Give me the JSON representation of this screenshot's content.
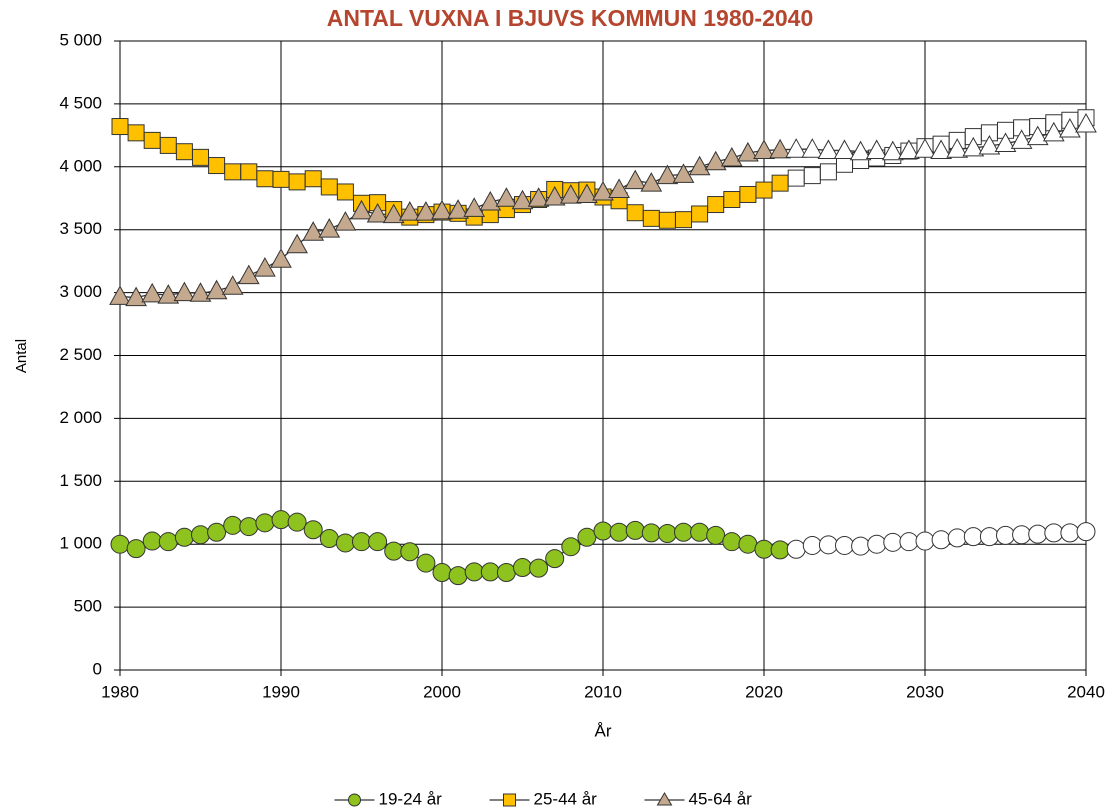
{
  "chart_data": {
    "type": "line",
    "title": "ANTAL VUXNA I BJUVS KOMMUN 1980-2040",
    "xlabel": "År",
    "ylabel": "Antal",
    "x": [
      1980,
      1981,
      1982,
      1983,
      1984,
      1985,
      1986,
      1987,
      1988,
      1989,
      1990,
      1991,
      1992,
      1993,
      1994,
      1995,
      1996,
      1997,
      1998,
      1999,
      2000,
      2001,
      2002,
      2003,
      2004,
      2005,
      2006,
      2007,
      2008,
      2009,
      2010,
      2011,
      2012,
      2013,
      2014,
      2015,
      2016,
      2017,
      2018,
      2019,
      2020,
      2021,
      2022,
      2023,
      2024,
      2025,
      2026,
      2027,
      2028,
      2029,
      2030,
      2031,
      2032,
      2033,
      2034,
      2035,
      2036,
      2037,
      2038,
      2039,
      2040
    ],
    "forecast_start": 2022,
    "series": [
      {
        "name": "19-24 år",
        "color": "#8dc21f",
        "marker": "circle",
        "values": [
          1000,
          965,
          1025,
          1020,
          1055,
          1075,
          1095,
          1150,
          1140,
          1170,
          1195,
          1175,
          1115,
          1045,
          1010,
          1020,
          1020,
          945,
          940,
          850,
          775,
          750,
          780,
          780,
          775,
          815,
          810,
          885,
          980,
          1055,
          1105,
          1095,
          1110,
          1090,
          1085,
          1095,
          1095,
          1070,
          1020,
          1000,
          960,
          955,
          960,
          990,
          995,
          990,
          985,
          1000,
          1015,
          1020,
          1025,
          1035,
          1050,
          1060,
          1060,
          1070,
          1075,
          1080,
          1090,
          1090,
          1100
        ]
      },
      {
        "name": "25-44 år",
        "color": "#ffc000",
        "marker": "square",
        "values": [
          4320,
          4270,
          4210,
          4170,
          4120,
          4075,
          4010,
          3960,
          3960,
          3905,
          3900,
          3880,
          3905,
          3840,
          3800,
          3710,
          3715,
          3660,
          3600,
          3620,
          3640,
          3630,
          3600,
          3620,
          3660,
          3700,
          3740,
          3820,
          3810,
          3815,
          3760,
          3730,
          3635,
          3590,
          3575,
          3580,
          3625,
          3700,
          3740,
          3780,
          3815,
          3870,
          3910,
          3930,
          3960,
          4020,
          4050,
          4070,
          4090,
          4125,
          4160,
          4180,
          4210,
          4240,
          4270,
          4290,
          4310,
          4320,
          4350,
          4370,
          4390
        ]
      },
      {
        "name": "45-64 år",
        "color": "#c4a98e",
        "marker": "triangle",
        "values": [
          2970,
          2960,
          2990,
          2980,
          3000,
          2995,
          3015,
          3050,
          3135,
          3195,
          3265,
          3380,
          3480,
          3505,
          3560,
          3650,
          3625,
          3620,
          3640,
          3640,
          3650,
          3655,
          3670,
          3720,
          3750,
          3730,
          3750,
          3760,
          3775,
          3780,
          3800,
          3820,
          3890,
          3870,
          3930,
          3940,
          4000,
          4040,
          4070,
          4110,
          4130,
          4135,
          4140,
          4140,
          4130,
          4130,
          4120,
          4130,
          4120,
          4130,
          4140,
          4130,
          4140,
          4150,
          4165,
          4185,
          4210,
          4240,
          4270,
          4300,
          4340
        ]
      }
    ],
    "xlim": [
      1980,
      2040
    ],
    "xticks": [
      1980,
      1990,
      2000,
      2010,
      2020,
      2030,
      2040
    ],
    "ylim": [
      0,
      5000
    ],
    "yticks": [
      0,
      500,
      {
        "value": 1000,
        "label": "1 000"
      },
      {
        "value": 1500,
        "label": "1 500"
      },
      {
        "value": 2000,
        "label": "2 000"
      },
      {
        "value": 2500,
        "label": "2 500"
      },
      {
        "value": 3000,
        "label": "3 000"
      },
      {
        "value": 3500,
        "label": "3 500"
      },
      {
        "value": 4000,
        "label": "4 000"
      },
      {
        "value": 4500,
        "label": "4 500"
      },
      {
        "value": 5000,
        "label": "5 000"
      }
    ],
    "grid": true,
    "legend": "bottom"
  }
}
